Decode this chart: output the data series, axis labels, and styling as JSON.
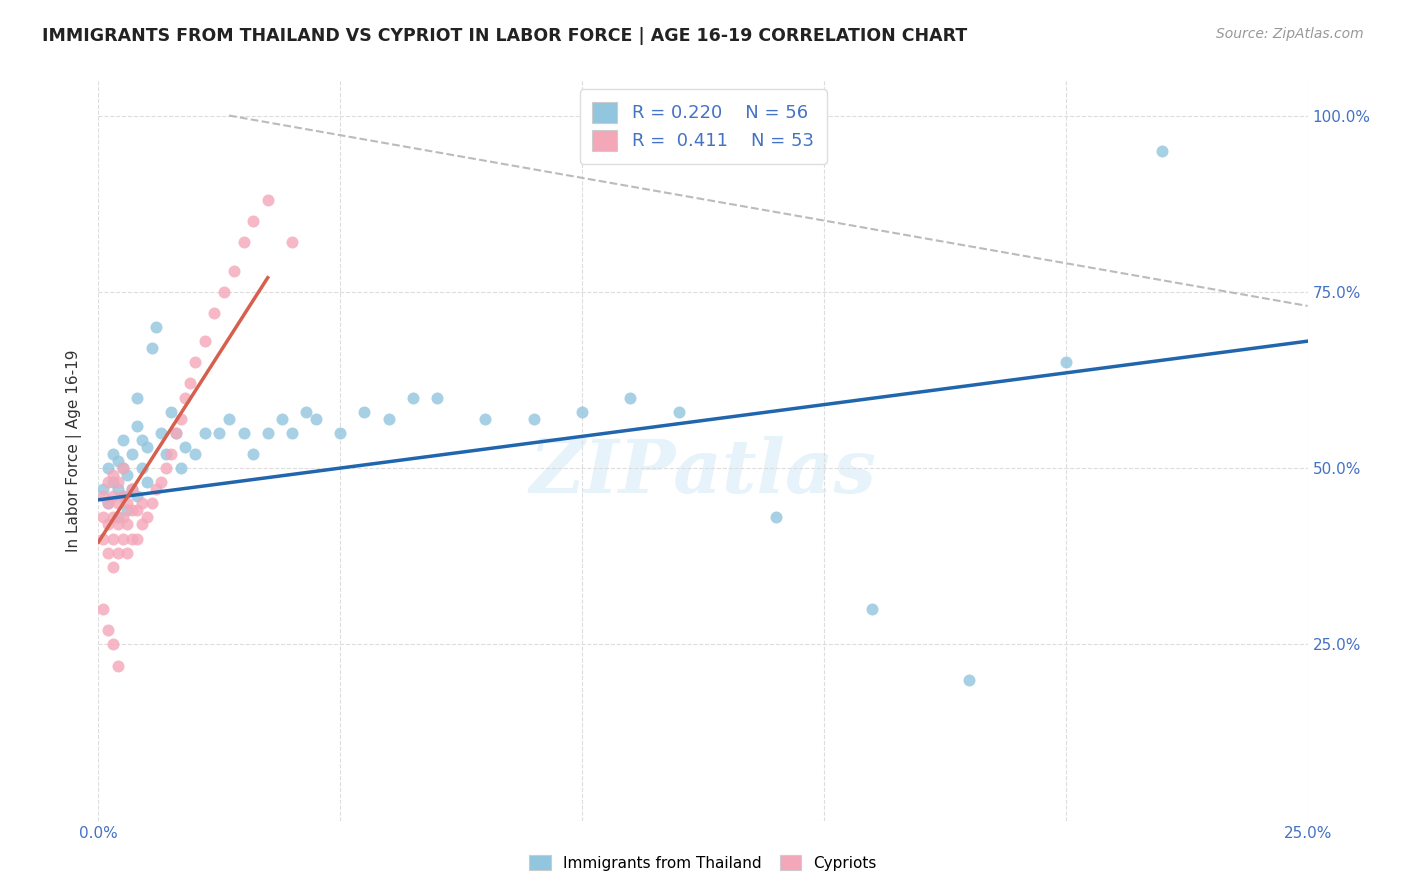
{
  "title": "IMMIGRANTS FROM THAILAND VS CYPRIOT IN LABOR FORCE | AGE 16-19 CORRELATION CHART",
  "source": "Source: ZipAtlas.com",
  "ylabel": "In Labor Force | Age 16-19",
  "watermark": "ZIPatlas",
  "xlim": [
    0.0,
    0.25
  ],
  "ylim": [
    0.0,
    1.05
  ],
  "x_ticks": [
    0.0,
    0.05,
    0.1,
    0.15,
    0.2,
    0.25
  ],
  "y_ticks": [
    0.0,
    0.25,
    0.5,
    0.75,
    1.0
  ],
  "x_tick_labels": [
    "0.0%",
    "",
    "",
    "",
    "",
    "25.0%"
  ],
  "y_tick_labels_right": [
    "",
    "25.0%",
    "50.0%",
    "75.0%",
    "100.0%"
  ],
  "blue_color": "#92c5de",
  "pink_color": "#f4a7b9",
  "trendline_blue": "#2166ac",
  "trendline_pink": "#d6604d",
  "trendline_dashed_color": "#bbbbbb",
  "background_color": "#ffffff",
  "grid_color": "#dddddd",
  "thailand_x": [
    0.001,
    0.002,
    0.002,
    0.003,
    0.003,
    0.004,
    0.004,
    0.004,
    0.005,
    0.005,
    0.005,
    0.006,
    0.006,
    0.007,
    0.007,
    0.008,
    0.008,
    0.008,
    0.009,
    0.009,
    0.01,
    0.01,
    0.011,
    0.012,
    0.013,
    0.014,
    0.015,
    0.016,
    0.017,
    0.018,
    0.02,
    0.022,
    0.025,
    0.027,
    0.03,
    0.032,
    0.035,
    0.038,
    0.04,
    0.043,
    0.045,
    0.05,
    0.055,
    0.06,
    0.065,
    0.07,
    0.08,
    0.09,
    0.1,
    0.11,
    0.12,
    0.14,
    0.16,
    0.18,
    0.2,
    0.22
  ],
  "thailand_y": [
    0.47,
    0.45,
    0.5,
    0.48,
    0.52,
    0.43,
    0.47,
    0.51,
    0.46,
    0.5,
    0.54,
    0.44,
    0.49,
    0.47,
    0.52,
    0.56,
    0.6,
    0.46,
    0.5,
    0.54,
    0.48,
    0.53,
    0.67,
    0.7,
    0.55,
    0.52,
    0.58,
    0.55,
    0.5,
    0.53,
    0.52,
    0.55,
    0.55,
    0.57,
    0.55,
    0.52,
    0.55,
    0.57,
    0.55,
    0.58,
    0.57,
    0.55,
    0.58,
    0.57,
    0.6,
    0.6,
    0.57,
    0.57,
    0.58,
    0.6,
    0.58,
    0.43,
    0.3,
    0.2,
    0.65,
    0.95
  ],
  "cypriot_x": [
    0.001,
    0.001,
    0.001,
    0.002,
    0.002,
    0.002,
    0.002,
    0.003,
    0.003,
    0.003,
    0.003,
    0.003,
    0.004,
    0.004,
    0.004,
    0.004,
    0.005,
    0.005,
    0.005,
    0.005,
    0.006,
    0.006,
    0.006,
    0.007,
    0.007,
    0.007,
    0.008,
    0.008,
    0.009,
    0.009,
    0.01,
    0.011,
    0.012,
    0.013,
    0.014,
    0.015,
    0.016,
    0.017,
    0.018,
    0.019,
    0.02,
    0.022,
    0.024,
    0.026,
    0.028,
    0.03,
    0.032,
    0.035,
    0.04,
    0.001,
    0.002,
    0.003,
    0.004
  ],
  "cypriot_y": [
    0.4,
    0.43,
    0.46,
    0.38,
    0.42,
    0.45,
    0.48,
    0.36,
    0.4,
    0.43,
    0.46,
    0.49,
    0.38,
    0.42,
    0.45,
    0.48,
    0.4,
    0.43,
    0.46,
    0.5,
    0.38,
    0.42,
    0.45,
    0.4,
    0.44,
    0.47,
    0.4,
    0.44,
    0.42,
    0.45,
    0.43,
    0.45,
    0.47,
    0.48,
    0.5,
    0.52,
    0.55,
    0.57,
    0.6,
    0.62,
    0.65,
    0.68,
    0.72,
    0.75,
    0.78,
    0.82,
    0.85,
    0.88,
    0.82,
    0.3,
    0.27,
    0.25,
    0.22
  ],
  "blue_trend_x": [
    0.0,
    0.25
  ],
  "blue_trend_y": [
    0.455,
    0.68
  ],
  "pink_trend_x": [
    0.0,
    0.035
  ],
  "pink_trend_y": [
    0.395,
    0.77
  ],
  "dash_trend_x": [
    0.027,
    0.25
  ],
  "dash_trend_y": [
    1.0,
    0.73
  ]
}
